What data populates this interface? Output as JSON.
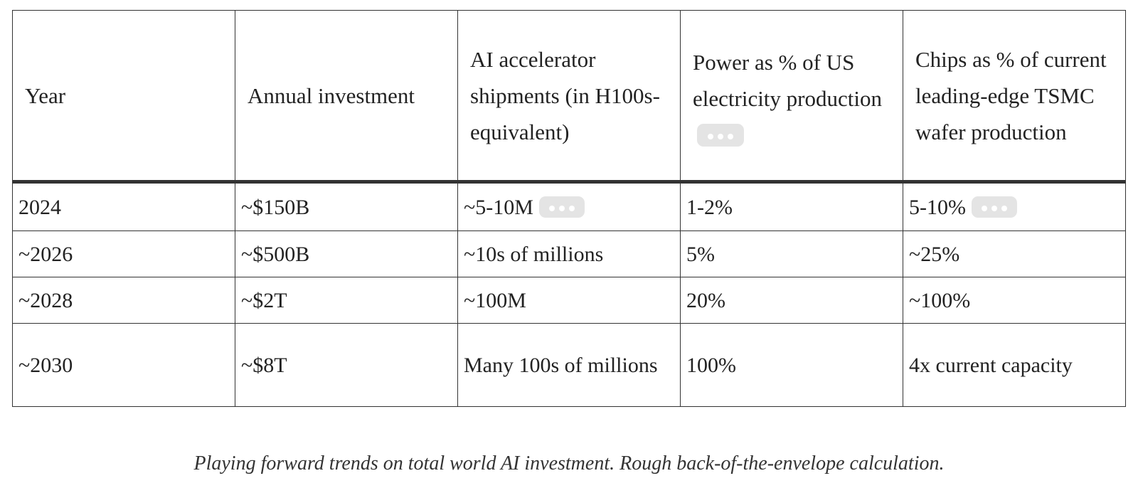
{
  "table": {
    "headers": [
      "Year",
      "Annual investment",
      "AI accelerator shipments (in H100s-equivalent)",
      "Power as % of US electricity production",
      "Chips as % of current leading-edge TSMC wafer production"
    ],
    "rows": [
      [
        "2024",
        "~$150B",
        "~5-10M",
        "1-2%",
        "5-10%"
      ],
      [
        "~2026",
        "~$500B",
        "~10s of millions",
        "5%",
        "~25%"
      ],
      [
        "~2028",
        "~$2T",
        "~100M",
        "20%",
        "~100%"
      ],
      [
        "~2030",
        "~$8T",
        "Many 100s of millions",
        "100%",
        "4x current capacity"
      ]
    ]
  },
  "icons": {
    "footnote_toggle": "more-horizontal-icon"
  },
  "caption": "Playing forward trends on total world AI investment. Rough back-of-the-envelope calculation."
}
